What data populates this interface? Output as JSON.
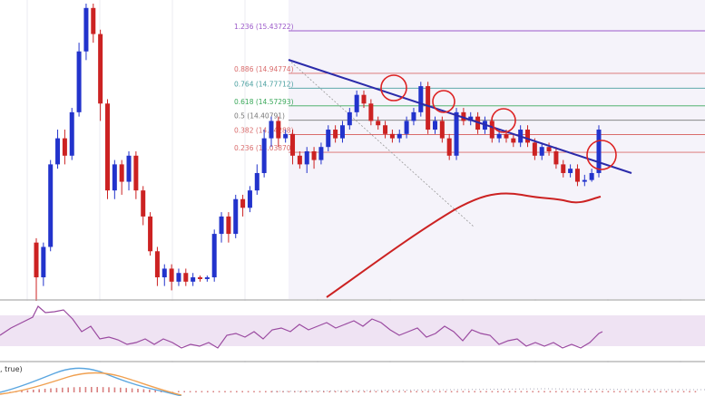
{
  "chart_data": {
    "type": "candlestick",
    "title": "",
    "xlabel": "",
    "ylabel": "",
    "colors": {
      "bull": "#2233cc",
      "bear": "#cc2222",
      "trendline": "#2b2baa",
      "ma": "#cc2222",
      "rsi": "#9a4aa0",
      "rsi_band": "#efe3f3",
      "fib": "#d96b6b",
      "circle": "#dd2222",
      "macd_blue": "#5aa6e0",
      "macd_orange": "#f0a050"
    },
    "fib_levels": [
      {
        "label": "1.236",
        "value": "15.43722",
        "text": "1.236 (15.43722)",
        "price": 15.43722,
        "color": "#9b59c9"
      },
      {
        "label": "0.886",
        "value": "14.94774",
        "text": "0.886 (14.94774)",
        "price": 14.94774,
        "color": "#d96b6b"
      },
      {
        "label": "0.764",
        "value": "14.77712",
        "text": "0.764 (14.77712)",
        "price": 14.77712,
        "color": "#4aa0a0"
      },
      {
        "label": "0.618",
        "value": "14.57293",
        "text": "0.618 (14.57293)",
        "price": 14.57293,
        "color": "#3aa85a"
      },
      {
        "label": "0.5",
        "value": "14.40791",
        "text": "0.5 (14.40791)",
        "price": 14.40791,
        "color": "#777777"
      },
      {
        "label": "0.382",
        "value": "14.24288",
        "text": "0.382 (14.24288)",
        "price": 14.24288,
        "color": "#d96b6b"
      },
      {
        "label": "0.236",
        "value": "14.03870",
        "text": "0.236 (14.03870)",
        "price": 14.0387,
        "color": "#d96b6b"
      }
    ],
    "price_range": [
      12.35,
      15.75
    ],
    "candles": [
      [
        13.0,
        12.6,
        13.05,
        12.3
      ],
      [
        12.6,
        12.95,
        13.0,
        12.5
      ],
      [
        12.95,
        13.9,
        13.95,
        12.9
      ],
      [
        13.9,
        14.2,
        14.3,
        13.85
      ],
      [
        14.2,
        14.0,
        14.3,
        13.9
      ],
      [
        14.0,
        14.5,
        14.55,
        13.95
      ],
      [
        14.5,
        15.2,
        15.3,
        14.45
      ],
      [
        15.2,
        15.7,
        15.75,
        15.1
      ],
      [
        15.7,
        15.4,
        15.75,
        15.3
      ],
      [
        15.4,
        14.6,
        15.45,
        14.4
      ],
      [
        14.6,
        13.6,
        14.65,
        13.5
      ],
      [
        13.6,
        13.9,
        13.95,
        13.5
      ],
      [
        13.9,
        13.7,
        13.95,
        13.55
      ],
      [
        13.7,
        14.0,
        14.05,
        13.6
      ],
      [
        14.0,
        13.6,
        14.05,
        13.5
      ],
      [
        13.6,
        13.3,
        13.65,
        13.2
      ],
      [
        13.3,
        12.9,
        13.35,
        12.85
      ],
      [
        12.9,
        12.6,
        12.95,
        12.5
      ],
      [
        12.6,
        12.7,
        12.75,
        12.5
      ],
      [
        12.7,
        12.55,
        12.75,
        12.45
      ],
      [
        12.55,
        12.65,
        12.7,
        12.5
      ],
      [
        12.65,
        12.55,
        12.7,
        12.5
      ],
      [
        12.55,
        12.6,
        12.65,
        12.5
      ],
      [
        12.6,
        12.58,
        12.62,
        12.55
      ],
      [
        12.58,
        12.6,
        12.62,
        12.55
      ],
      [
        12.6,
        13.1,
        13.15,
        12.55
      ],
      [
        13.1,
        13.3,
        13.35,
        13.0
      ],
      [
        13.3,
        13.1,
        13.35,
        13.0
      ],
      [
        13.1,
        13.5,
        13.55,
        13.05
      ],
      [
        13.5,
        13.4,
        13.55,
        13.3
      ],
      [
        13.4,
        13.6,
        13.65,
        13.35
      ],
      [
        13.6,
        13.8,
        13.9,
        13.55
      ],
      [
        13.8,
        14.2,
        14.3,
        13.75
      ],
      [
        14.2,
        14.4,
        14.45,
        14.1
      ],
      [
        14.4,
        14.2,
        14.45,
        14.1
      ],
      [
        14.2,
        14.25,
        14.3,
        14.15
      ],
      [
        14.25,
        14.0,
        14.3,
        13.9
      ],
      [
        14.0,
        13.9,
        14.05,
        13.85
      ],
      [
        13.9,
        14.05,
        14.1,
        13.8
      ],
      [
        14.05,
        13.95,
        14.1,
        13.85
      ],
      [
        13.95,
        14.1,
        14.15,
        13.9
      ],
      [
        14.1,
        14.3,
        14.35,
        14.05
      ],
      [
        14.3,
        14.2,
        14.35,
        14.15
      ],
      [
        14.2,
        14.35,
        14.4,
        14.15
      ],
      [
        14.35,
        14.5,
        14.55,
        14.3
      ],
      [
        14.5,
        14.7,
        14.75,
        14.45
      ],
      [
        14.7,
        14.6,
        14.75,
        14.55
      ],
      [
        14.6,
        14.4,
        14.65,
        14.35
      ],
      [
        14.4,
        14.35,
        14.45,
        14.3
      ],
      [
        14.35,
        14.25,
        14.4,
        14.2
      ],
      [
        14.25,
        14.2,
        14.3,
        14.15
      ],
      [
        14.2,
        14.25,
        14.3,
        14.15
      ],
      [
        14.25,
        14.4,
        14.45,
        14.2
      ],
      [
        14.4,
        14.5,
        14.55,
        14.35
      ],
      [
        14.5,
        14.8,
        14.85,
        14.45
      ],
      [
        14.8,
        14.3,
        14.85,
        14.25
      ],
      [
        14.3,
        14.4,
        14.45,
        14.25
      ],
      [
        14.4,
        14.2,
        14.45,
        14.15
      ],
      [
        14.2,
        14.0,
        14.25,
        13.95
      ],
      [
        14.0,
        14.5,
        14.55,
        13.95
      ],
      [
        14.5,
        14.4,
        14.55,
        14.35
      ],
      [
        14.4,
        14.45,
        14.5,
        14.35
      ],
      [
        14.45,
        14.3,
        14.5,
        14.25
      ],
      [
        14.3,
        14.4,
        14.45,
        14.25
      ],
      [
        14.4,
        14.2,
        14.45,
        14.15
      ],
      [
        14.2,
        14.25,
        14.3,
        14.15
      ],
      [
        14.25,
        14.2,
        14.3,
        14.15
      ],
      [
        14.2,
        14.15,
        14.25,
        14.1
      ],
      [
        14.15,
        14.3,
        14.35,
        14.1
      ],
      [
        14.3,
        14.15,
        14.35,
        14.1
      ],
      [
        14.15,
        14.0,
        14.2,
        13.95
      ],
      [
        14.0,
        14.1,
        14.15,
        13.95
      ],
      [
        14.1,
        14.05,
        14.15,
        14.0
      ],
      [
        14.05,
        13.9,
        14.1,
        13.85
      ],
      [
        13.9,
        13.8,
        13.95,
        13.75
      ],
      [
        13.8,
        13.85,
        13.9,
        13.75
      ],
      [
        13.85,
        13.7,
        13.9,
        13.65
      ],
      [
        13.7,
        13.72,
        13.78,
        13.65
      ],
      [
        13.72,
        13.8,
        13.85,
        13.7
      ],
      [
        13.8,
        14.3,
        14.35,
        13.75
      ]
    ]
  }
}
